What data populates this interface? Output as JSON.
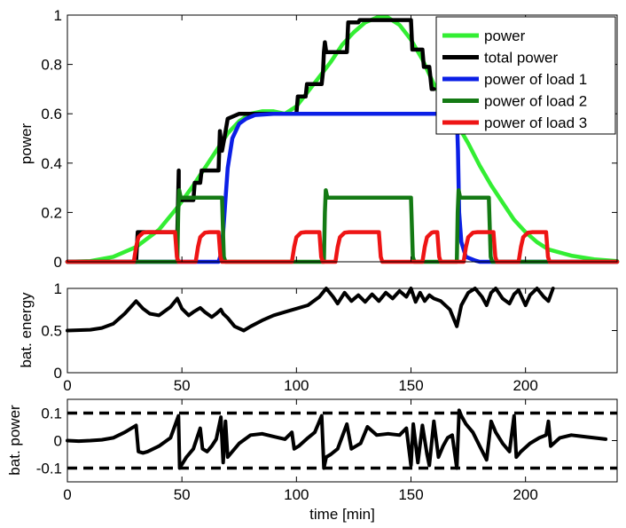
{
  "chart_data": [
    {
      "type": "line",
      "ylabel": "power",
      "xlim": [
        0,
        240
      ],
      "ylim": [
        0,
        1
      ],
      "yticks": [
        0,
        0.2,
        0.4,
        0.6,
        0.8,
        1
      ],
      "ytick_labels": [
        "0",
        "0.2",
        "0.4",
        "0.6",
        "0.8",
        "1"
      ],
      "legend_position": "top-right",
      "series": [
        {
          "name": "power",
          "color": "#33ee33",
          "x": [
            0,
            10,
            20,
            30,
            40,
            48,
            55,
            60,
            65,
            70,
            75,
            80,
            85,
            90,
            95,
            100,
            105,
            110,
            115,
            120,
            125,
            130,
            135,
            140,
            145,
            150,
            155,
            160,
            165,
            170,
            175,
            180,
            185,
            190,
            195,
            200,
            205,
            210,
            220,
            230,
            240
          ],
          "y": [
            0,
            0.003,
            0.02,
            0.06,
            0.13,
            0.22,
            0.31,
            0.38,
            0.45,
            0.52,
            0.57,
            0.6,
            0.61,
            0.61,
            0.6,
            0.63,
            0.69,
            0.75,
            0.81,
            0.88,
            0.93,
            0.97,
            0.99,
            0.99,
            0.96,
            0.9,
            0.82,
            0.72,
            0.64,
            0.56,
            0.48,
            0.39,
            0.31,
            0.24,
            0.17,
            0.12,
            0.08,
            0.05,
            0.025,
            0.01,
            0.003
          ]
        },
        {
          "name": "total power",
          "color": "#000000",
          "x": [
            0,
            30,
            30.7,
            48,
            48.6,
            48.6,
            55,
            55.6,
            58,
            58.6,
            58.6,
            66,
            66.6,
            67.5,
            68.5,
            70,
            75,
            100,
            100.6,
            104,
            104.6,
            111,
            111.6,
            112,
            112.4,
            113,
            122,
            122.6,
            127,
            127.6,
            150,
            150.6,
            155,
            155.6,
            158,
            159,
            160
          ],
          "y": [
            0,
            0,
            0.12,
            0.12,
            0.37,
            0.25,
            0.25,
            0.32,
            0.32,
            0.37,
            0.37,
            0.37,
            0.53,
            0.45,
            0.5,
            0.58,
            0.6,
            0.6,
            0.67,
            0.67,
            0.72,
            0.72,
            0.77,
            0.85,
            0.89,
            0.85,
            0.85,
            0.97,
            0.97,
            0.98,
            0.98,
            0.86,
            0.86,
            0.79,
            0.79,
            0.7,
            0.7
          ]
        },
        {
          "name": "power of load 1",
          "color": "#0b1fe6",
          "x": [
            0,
            66,
            67,
            68,
            70,
            72,
            75,
            78,
            82,
            90,
            170,
            170.5,
            171,
            172,
            174,
            178,
            180,
            185,
            240
          ],
          "y": [
            0,
            0,
            0.03,
            0.12,
            0.38,
            0.5,
            0.56,
            0.58,
            0.595,
            0.6,
            0.6,
            0.45,
            0.2,
            0.08,
            0.02,
            0.005,
            0,
            0,
            0
          ]
        },
        {
          "name": "power of load 2",
          "color": "#147a14",
          "x": [
            0,
            48,
            48.4,
            48.8,
            49.5,
            50.5,
            67.5,
            68.3,
            69,
            112,
            112.4,
            112.8,
            113.5,
            114.5,
            150,
            150.8,
            151.5,
            170,
            170.4,
            170.8,
            171.5,
            172.5,
            184,
            184.8,
            185.5,
            240
          ],
          "y": [
            0,
            0,
            0.2,
            0.29,
            0.26,
            0.26,
            0.26,
            0.02,
            0,
            0,
            0.2,
            0.29,
            0.26,
            0.26,
            0.26,
            0.02,
            0,
            0,
            0.2,
            0.29,
            0.26,
            0.26,
            0.26,
            0.02,
            0,
            0
          ]
        },
        {
          "name": "power of load 3",
          "color": "#ee1515",
          "x": [
            0,
            29,
            30,
            31,
            33,
            35,
            47,
            47.8,
            48.5,
            56,
            57,
            58,
            60,
            62,
            66,
            66.8,
            67.5,
            98,
            99,
            100,
            102,
            104,
            110,
            110.8,
            111.5,
            117,
            118,
            119,
            121,
            123,
            136,
            136.8,
            137.5,
            155,
            156,
            157,
            159,
            160,
            161.5,
            162.3,
            163,
            173,
            174,
            175,
            177,
            179,
            186,
            186.8,
            187.5,
            197,
            198,
            199,
            201,
            203,
            209,
            209.8,
            210.5,
            240
          ],
          "y": [
            0,
            0,
            0.06,
            0.1,
            0.118,
            0.12,
            0.12,
            0.02,
            0,
            0,
            0.06,
            0.1,
            0.118,
            0.12,
            0.12,
            0.02,
            0,
            0,
            0.06,
            0.1,
            0.118,
            0.12,
            0.12,
            0.02,
            0,
            0,
            0.06,
            0.1,
            0.118,
            0.12,
            0.12,
            0.02,
            0,
            0,
            0.06,
            0.1,
            0.118,
            0.12,
            0.12,
            0.02,
            0,
            0,
            0.06,
            0.1,
            0.118,
            0.12,
            0.12,
            0.02,
            0,
            0,
            0.06,
            0.1,
            0.118,
            0.12,
            0.12,
            0.02,
            0,
            0
          ]
        }
      ]
    },
    {
      "type": "line",
      "ylabel": "bat. energy",
      "xlim": [
        0,
        240
      ],
      "ylim": [
        0,
        1
      ],
      "yticks": [
        0,
        0.5,
        1
      ],
      "ytick_labels": [
        "0",
        "0.5",
        "1"
      ],
      "xticks": [
        0,
        50,
        100,
        150,
        200
      ],
      "xtick_labels": [
        "0",
        "50",
        "100",
        "150",
        "200"
      ],
      "series": [
        {
          "name": "bat. energy",
          "color": "#000000",
          "x": [
            0,
            10,
            15,
            20,
            25,
            30,
            33,
            36,
            40,
            45,
            48,
            50,
            53,
            55,
            58,
            60,
            63,
            65,
            67,
            68,
            70,
            73,
            77,
            80,
            85,
            90,
            95,
            100,
            105,
            110,
            113,
            116,
            118,
            121,
            124,
            127,
            130,
            133,
            136,
            139,
            142,
            145,
            148,
            150,
            152,
            154,
            156,
            158,
            160,
            163,
            167,
            170,
            172,
            175,
            178,
            181,
            183,
            185,
            187,
            190,
            193,
            195,
            197,
            200,
            202,
            205,
            208,
            210,
            212
          ],
          "y": [
            0.5,
            0.51,
            0.53,
            0.58,
            0.7,
            0.85,
            0.76,
            0.7,
            0.68,
            0.78,
            0.88,
            0.76,
            0.68,
            0.72,
            0.77,
            0.72,
            0.66,
            0.7,
            0.75,
            0.7,
            0.65,
            0.55,
            0.5,
            0.55,
            0.62,
            0.68,
            0.72,
            0.76,
            0.8,
            0.9,
            1.0,
            0.9,
            0.82,
            0.95,
            0.85,
            0.92,
            0.84,
            0.93,
            0.85,
            0.95,
            0.88,
            0.97,
            0.9,
            1.0,
            0.84,
            0.95,
            0.85,
            0.92,
            0.88,
            0.85,
            0.75,
            0.55,
            0.8,
            0.95,
            1.0,
            0.9,
            0.8,
            0.95,
            1.0,
            0.88,
            0.82,
            0.93,
            0.98,
            0.8,
            0.92,
            1.0,
            0.9,
            0.85,
            1.0
          ]
        }
      ]
    },
    {
      "type": "line",
      "ylabel": "bat. power",
      "xlabel": "time [min]",
      "xlim": [
        0,
        240
      ],
      "ylim": [
        -0.15,
        0.15
      ],
      "yticks": [
        -0.1,
        0,
        0.1
      ],
      "ytick_labels": [
        "-0.1",
        "0",
        "0.1"
      ],
      "xticks": [
        0,
        50,
        100,
        150,
        200
      ],
      "xtick_labels": [
        "0",
        "50",
        "100",
        "150",
        "200"
      ],
      "limits": [
        0.1,
        -0.1
      ],
      "series": [
        {
          "name": "bat. power",
          "color": "#000000",
          "x": [
            0,
            5,
            10,
            15,
            20,
            25,
            30,
            31,
            33,
            35,
            40,
            45,
            48.5,
            49,
            52,
            55,
            58,
            59,
            61,
            63,
            65,
            67,
            68,
            69,
            70,
            71,
            72,
            75,
            80,
            85,
            90,
            95,
            98,
            99,
            101,
            105,
            108,
            111,
            112,
            113,
            115,
            118,
            122,
            124,
            126,
            128,
            131,
            135,
            140,
            145,
            148,
            150,
            151,
            153,
            155,
            157,
            158,
            160,
            162,
            164,
            166,
            168,
            170,
            171,
            172,
            174,
            177,
            180,
            183,
            185,
            187,
            190,
            193,
            195,
            196,
            198,
            202,
            206,
            209,
            210,
            211,
            215,
            220,
            225,
            230,
            235
          ],
          "y": [
            0,
            -0.002,
            0,
            0.003,
            0.01,
            0.03,
            0.055,
            -0.04,
            -0.045,
            -0.04,
            -0.02,
            0.01,
            0.09,
            -0.1,
            -0.06,
            -0.03,
            0.045,
            -0.03,
            -0.04,
            -0.02,
            0.005,
            0.085,
            -0.08,
            0.07,
            -0.06,
            -0.05,
            -0.04,
            -0.01,
            0.02,
            0.025,
            0.015,
            0.005,
            0.03,
            -0.03,
            -0.02,
            0.01,
            0.03,
            0.09,
            -0.1,
            -0.06,
            -0.05,
            -0.03,
            0.06,
            -0.03,
            -0.02,
            -0.01,
            0.05,
            0.02,
            0.025,
            0.02,
            0.045,
            -0.09,
            0.06,
            -0.08,
            0.055,
            -0.05,
            -0.09,
            0.07,
            -0.06,
            -0.02,
            0.01,
            0.02,
            -0.1,
            0.11,
            0.09,
            0.06,
            0.03,
            -0.02,
            -0.07,
            0.07,
            0.03,
            -0.01,
            -0.04,
            0.09,
            -0.06,
            -0.04,
            -0.01,
            0.01,
            0.02,
            0.07,
            -0.02,
            0.01,
            0.02,
            0.015,
            0.01,
            0.005
          ]
        }
      ]
    }
  ],
  "colors": {
    "power": "#33ee33",
    "total_power": "#000000",
    "load1": "#0b1fe6",
    "load2": "#147a14",
    "load3": "#ee1515"
  }
}
